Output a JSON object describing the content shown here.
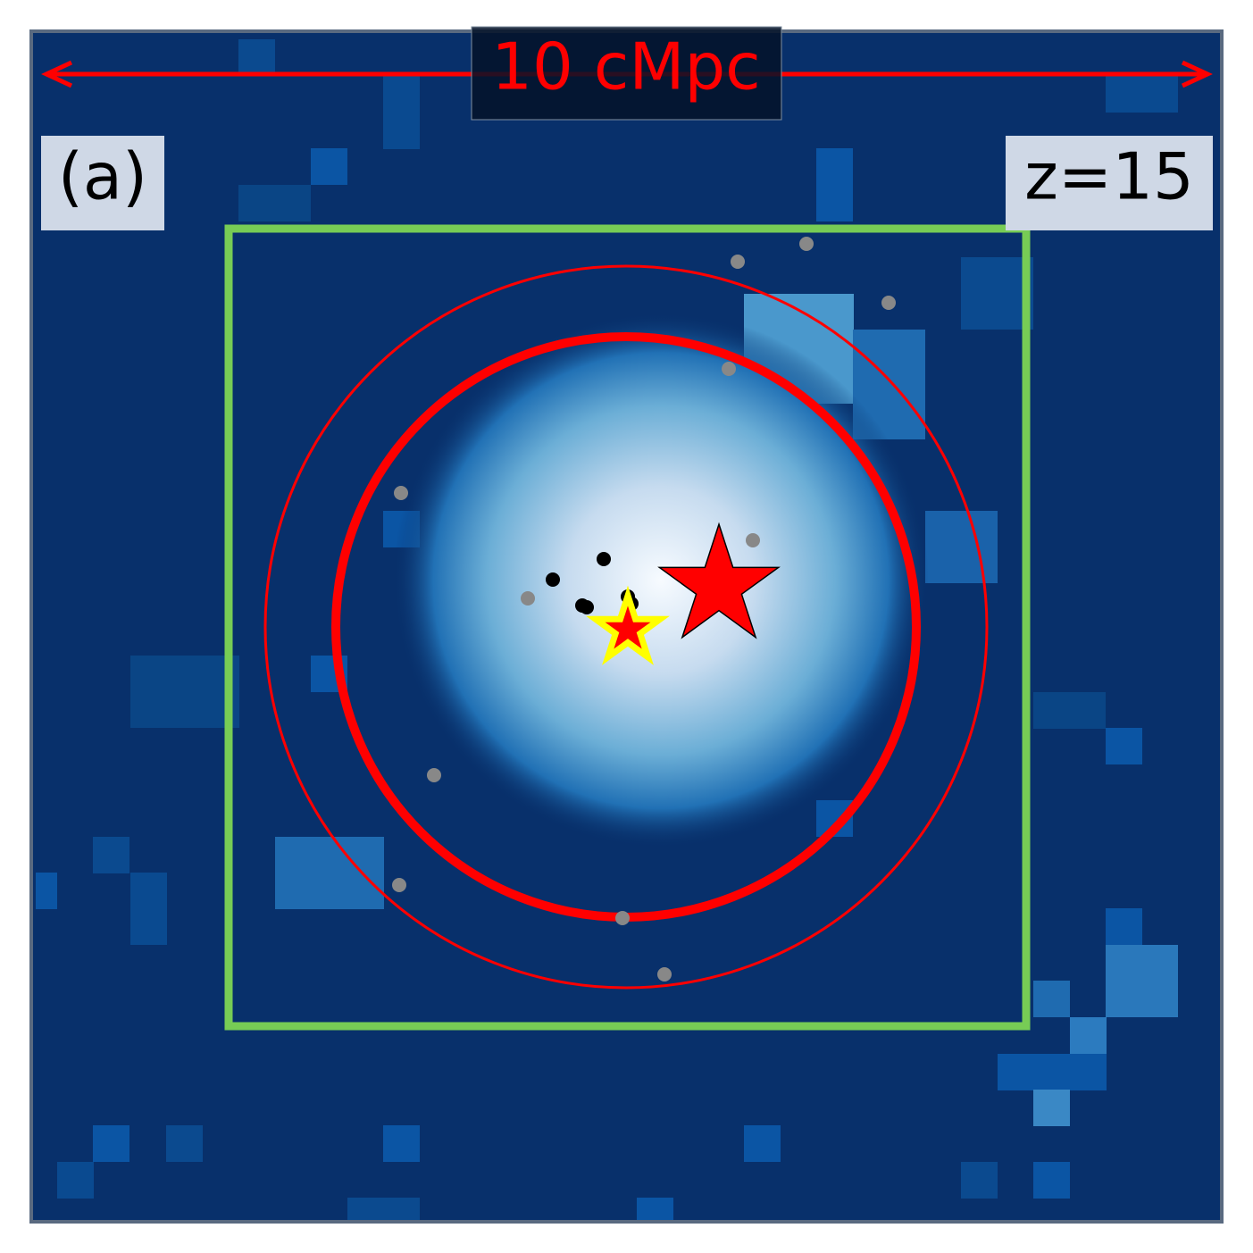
{
  "scale_label": "10 cMpc",
  "panel_label": "(a)",
  "redshift_label": "z=15"
}
